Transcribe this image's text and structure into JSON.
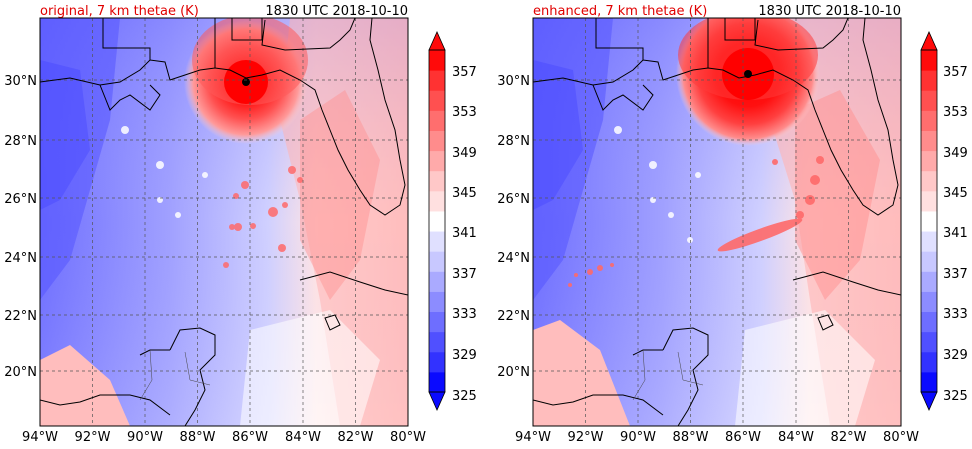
{
  "panels": [
    {
      "title_left": "original, 7 km thetae (K)",
      "title_right": "1830 UTC 2018-10-10",
      "x_ticks": [
        "94°W",
        "92°W",
        "90°W",
        "88°W",
        "86°W",
        "84°W",
        "82°W",
        "80°W"
      ],
      "y_ticks": [
        "30°N",
        "28°N",
        "26°N",
        "24°N",
        "22°N",
        "20°N"
      ],
      "colorbar_ticks": [
        "357",
        "353",
        "349",
        "345",
        "341",
        "337",
        "333",
        "329",
        "325"
      ]
    },
    {
      "title_left": "enhanced, 7 km thetae (K)",
      "title_right": "1830 UTC 2018-10-10",
      "x_ticks": [
        "94°W",
        "92°W",
        "90°W",
        "88°W",
        "86°W",
        "84°W",
        "82°W",
        "80°W"
      ],
      "y_ticks": [
        "30°N",
        "28°N",
        "26°N",
        "24°N",
        "22°N",
        "20°N"
      ],
      "colorbar_ticks": [
        "357",
        "353",
        "349",
        "345",
        "341",
        "337",
        "333",
        "329",
        "325"
      ]
    }
  ],
  "colors": {
    "title_left": "#e00000",
    "cold_end": "#0000ff",
    "warm_end": "#ff0000",
    "neutral": "#ffffff",
    "colorbar_levels": [
      "#0a0aff",
      "#3232ff",
      "#5050ff",
      "#6e6eff",
      "#8c8cff",
      "#aaaaff",
      "#c8c8ff",
      "#e0e0ff",
      "#ffffff",
      "#ffe0e0",
      "#ffc8c8",
      "#ffaaaa",
      "#ff8c8c",
      "#ff6e6e",
      "#ff5050",
      "#ff3232",
      "#ff0a0a"
    ]
  }
}
